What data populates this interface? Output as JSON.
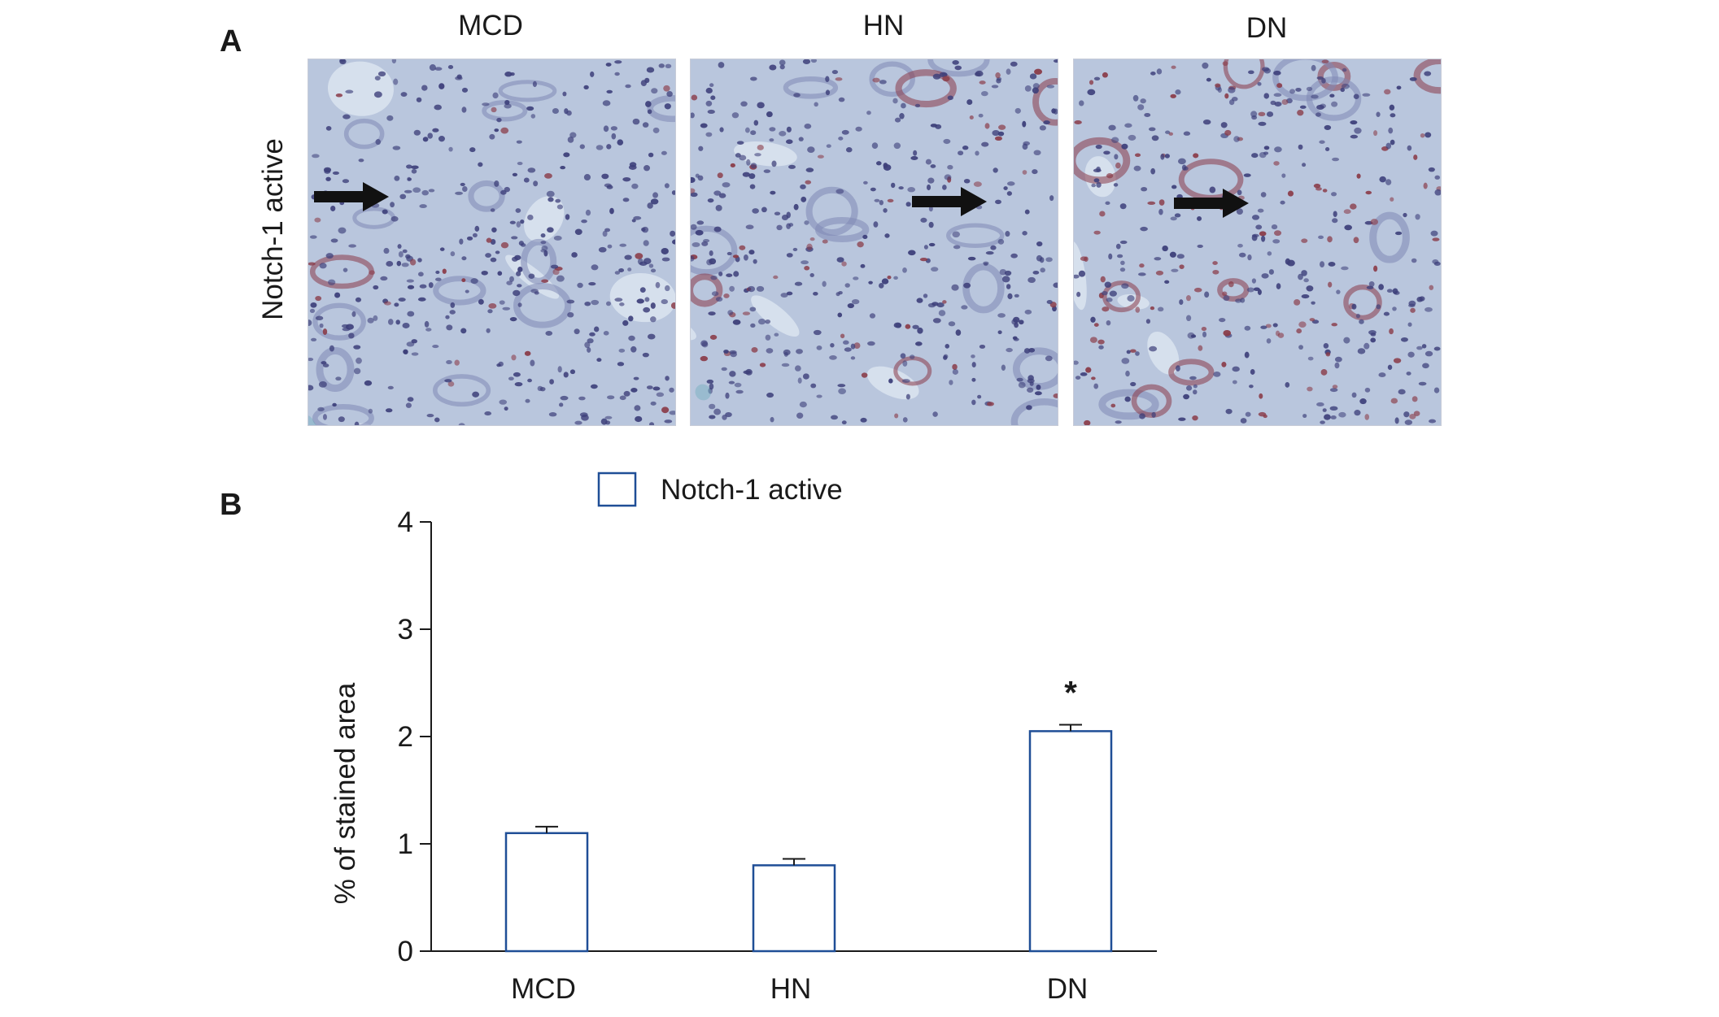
{
  "panels": {
    "a_letter": "A",
    "b_letter": "B",
    "row_label": "Notch-1 active",
    "columns": [
      "MCD",
      "HN",
      "DN"
    ]
  },
  "colors": {
    "bar_stroke": "#1f4e96",
    "axis": "#1a1a1a",
    "tissue_bg": "#b9c6dd",
    "nuclei": "#3d3f7a",
    "stain": "#8a3b48"
  },
  "chart_data": {
    "type": "bar",
    "categories": [
      "MCD",
      "HN",
      "DN"
    ],
    "series": [
      {
        "name": "Notch-1 active",
        "values": [
          1.1,
          0.8,
          2.05
        ],
        "errors": [
          0.06,
          0.06,
          0.06
        ]
      }
    ],
    "ylabel": "% of stained area",
    "ylim": [
      0,
      4
    ],
    "yticks": [
      0,
      1,
      2,
      3,
      4
    ],
    "annotations": [
      {
        "category": "DN",
        "text": "*"
      }
    ],
    "legend_position": "top"
  }
}
